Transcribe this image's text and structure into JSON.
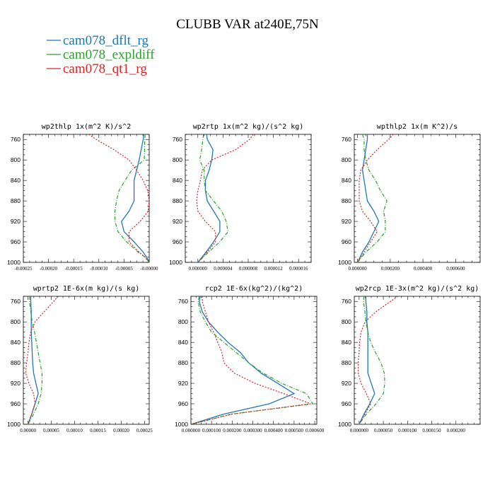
{
  "figure": {
    "title": "CLUBB VAR at240E,75N"
  },
  "legend": [
    {
      "name": "cam078_dflt_rg",
      "color": "#1f77b4"
    },
    {
      "name": "cam078_expldiff",
      "color": "#2ca02c"
    },
    {
      "name": "cam078_qt1_rg",
      "color": "#d62728"
    }
  ],
  "chart_data": [
    {
      "type": "line",
      "title": "wp2thlp  1x(m^2 K)/s^2",
      "xlim": [
        -0.00025,
        0.0
      ],
      "ylim": [
        1000,
        750
      ],
      "yticks": [
        760,
        800,
        840,
        880,
        920,
        960,
        1000
      ],
      "xtick_labels": [
        "-0.00025",
        "-0.00020",
        "-0.00015",
        "-0.00010",
        "-0.00005",
        "-0.00000"
      ],
      "xtick_values": [
        -0.00025,
        -0.0002,
        -0.00015,
        -0.0001,
        -5e-05,
        0.0
      ],
      "y": [
        750,
        760,
        780,
        800,
        820,
        840,
        860,
        880,
        900,
        920,
        940,
        960,
        980,
        990,
        1000
      ],
      "series": [
        {
          "name": "cam078_dflt_rg",
          "x": [
            -1.1e-05,
            -1.2e-05,
            -1.6e-05,
            -2e-05,
            -2.5e-05,
            -3e-05,
            -3e-05,
            -3e-05,
            -4e-05,
            -5.5e-05,
            -5e-05,
            -3e-05,
            -1.2e-05,
            -5e-06,
            0.0
          ]
        },
        {
          "name": "cam078_expldiff",
          "x": [
            -8e-06,
            -9e-06,
            -9e-06,
            -1e-05,
            -3.5e-05,
            -4.8e-05,
            -6e-05,
            -6.5e-05,
            -6.8e-05,
            -6.8e-05,
            -6.2e-05,
            -4.5e-05,
            -2.2e-05,
            -8e-06,
            0.0
          ]
        },
        {
          "name": "cam078_qt1_rg",
          "x": [
            -0.00012,
            -0.000105,
            -7e-05,
            -4e-05,
            -2.5e-05,
            -1.2e-05,
            -3e-06,
            0.0,
            -2e-06,
            -1.8e-05,
            -4e-05,
            -4e-05,
            -2e-05,
            -8e-06,
            0.0
          ]
        }
      ],
      "grid": false
    },
    {
      "type": "line",
      "title": "wp2rtp  1x(m^2 kg)/(s^2 kg)",
      "xlim": [
        -2e-06,
        1.8e-05
      ],
      "ylim": [
        1000,
        750
      ],
      "yticks": [
        760,
        800,
        840,
        880,
        920,
        960,
        1000
      ],
      "xtick_labels": [
        "0.000000",
        "0.000004",
        "0.000008",
        "0.000012",
        "0.000016"
      ],
      "xtick_values": [
        0.0,
        4e-06,
        8e-06,
        1.2e-05,
        1.6e-05
      ],
      "y": [
        750,
        760,
        780,
        800,
        820,
        840,
        860,
        880,
        900,
        920,
        940,
        960,
        980,
        1000
      ],
      "series": [
        {
          "name": "cam078_dflt_rg",
          "x": [
            1.4e-06,
            1.5e-06,
            2.4e-06,
            2.2e-06,
            1.8e-06,
            1.2e-06,
            1.2e-06,
            1.5e-06,
            2.5e-06,
            3.5e-06,
            3.5e-06,
            2.5e-06,
            1.3e-06,
            0.0
          ]
        },
        {
          "name": "cam078_expldiff",
          "x": [
            9e-07,
            8e-07,
            6e-07,
            3e-07,
            1e-06,
            1e-06,
            1.2e-06,
            2.5e-06,
            3.8e-06,
            4.5e-06,
            4.8e-06,
            3.5e-06,
            1.7e-06,
            0.0
          ]
        },
        {
          "name": "cam078_qt1_rg",
          "x": [
            8.8e-06,
            8.2e-06,
            6e-06,
            2.2e-06,
            7e-07,
            4e-07,
            0.0,
            -2e-07,
            0.0,
            1.2e-06,
            2.8e-06,
            2.8e-06,
            1.5e-06,
            0.0
          ]
        }
      ],
      "grid": false
    },
    {
      "type": "line",
      "title": "wpthlp2  1x(m K^2)/s",
      "xlim": [
        -2e-05,
        0.00075
      ],
      "ylim": [
        1000,
        750
      ],
      "yticks": [
        760,
        800,
        840,
        880,
        920,
        960,
        1000
      ],
      "xtick_labels": [
        "0.000000",
        "0.000200",
        "0.000400",
        "0.000600"
      ],
      "xtick_values": [
        0.0,
        0.0002,
        0.0004,
        0.0006
      ],
      "y": [
        750,
        760,
        780,
        800,
        820,
        840,
        860,
        880,
        900,
        920,
        940,
        960,
        980,
        1000
      ],
      "series": [
        {
          "name": "cam078_dflt_rg",
          "x": [
            6e-05,
            6e-05,
            5e-05,
            4e-05,
            3e-05,
            4e-05,
            5e-05,
            6e-05,
            0.0001,
            0.00013,
            0.0001,
            7e-05,
            3e-05,
            0.0
          ]
        },
        {
          "name": "cam078_expldiff",
          "x": [
            3e-05,
            4e-05,
            4e-05,
            5e-05,
            7e-05,
            0.00011,
            0.00014,
            0.00018,
            0.00016,
            0.00017,
            0.00017,
            0.00012,
            5e-05,
            0.0
          ]
        },
        {
          "name": "cam078_qt1_rg",
          "x": [
            0.00022,
            0.00019,
            0.00012,
            6e-05,
            2e-05,
            1e-05,
            1e-05,
            1e-05,
            3e-05,
            8e-05,
            0.00012,
            8e-05,
            4e-05,
            0.0
          ]
        }
      ],
      "grid": false
    },
    {
      "type": "line",
      "title": "wprtp2  1E-6x(m kg)/(s kg)",
      "xlim": [
        -1e-05,
        0.00026
      ],
      "ylim": [
        1000,
        750
      ],
      "yticks": [
        760,
        800,
        840,
        880,
        920,
        960,
        1000
      ],
      "xtick_labels": [
        "0.00000",
        "0.00005",
        "0.00010",
        "0.00015",
        "0.00020",
        "0.00025"
      ],
      "xtick_values": [
        0.0,
        5e-05,
        0.0001,
        0.00015,
        0.0002,
        0.00025
      ],
      "y": [
        750,
        760,
        780,
        800,
        820,
        840,
        860,
        880,
        900,
        920,
        940,
        960,
        980,
        1000
      ],
      "series": [
        {
          "name": "cam078_dflt_rg",
          "x": [
            6e-06,
            6e-06,
            7e-06,
            7e-06,
            7e-06,
            8e-06,
            9e-06,
            1e-05,
            1.2e-05,
            1.7e-05,
            2.2e-05,
            1.5e-05,
            8e-06,
            0.0
          ]
        },
        {
          "name": "cam078_expldiff",
          "x": [
            4e-06,
            3e-06,
            6e-06,
            9e-06,
            1.4e-05,
            1.8e-05,
            2.2e-05,
            2.6e-05,
            3e-05,
            3e-05,
            2.8e-05,
            2.2e-05,
            1.2e-05,
            0.0
          ]
        },
        {
          "name": "cam078_qt1_rg",
          "x": [
            6.5e-05,
            5.5e-05,
            3.5e-05,
            1.5e-05,
            6e-06,
            2e-06,
            0.0,
            -3e-06,
            -5e-06,
            2e-06,
            1.2e-05,
            1.5e-05,
            8e-06,
            0.0
          ]
        }
      ],
      "grid": false
    },
    {
      "type": "line",
      "title": "rcp2  1E-6x(kg^2)/(kg^2)",
      "xlim": [
        0.0,
        0.00061
      ],
      "ylim": [
        1000,
        750
      ],
      "yticks": [
        760,
        800,
        840,
        880,
        920,
        960,
        1000
      ],
      "xtick_labels": [
        "0.000000",
        "0.000100",
        "0.000200",
        "0.000300",
        "0.000400",
        "0.000500",
        "0.000600"
      ],
      "xtick_values": [
        0.0,
        0.0001,
        0.0002,
        0.0003,
        0.0004,
        0.0005,
        0.0006
      ],
      "y": [
        750,
        760,
        780,
        800,
        820,
        840,
        860,
        880,
        900,
        920,
        940,
        960,
        980,
        1000
      ],
      "series": [
        {
          "name": "cam078_dflt_rg",
          "x": [
            4.5e-05,
            4e-05,
            5.5e-05,
            8.5e-05,
            0.00013,
            0.00018,
            0.00024,
            0.00028,
            0.00034,
            0.00042,
            0.0005,
            0.00038,
            0.00016,
            0.0
          ]
        },
        {
          "name": "cam078_expldiff",
          "x": [
            4e-05,
            3.5e-05,
            4.5e-05,
            7e-05,
            0.0001,
            0.00016,
            0.00022,
            0.00028,
            0.00035,
            0.00044,
            0.00056,
            0.00059,
            0.0002,
            0.0
          ]
        },
        {
          "name": "cam078_qt1_rg",
          "x": [
            5.5e-05,
            5.5e-05,
            7e-05,
            8.5e-05,
            0.00011,
            0.00013,
            0.00015,
            0.00016,
            0.00021,
            0.00031,
            0.00045,
            0.00058,
            0.0002,
            0.0
          ]
        }
      ],
      "grid": false
    },
    {
      "type": "line",
      "title": "wp2rcp  1E-3x(m^2 kg)/(s^2 kg)",
      "xlim": [
        -1e-05,
        0.00025
      ],
      "ylim": [
        1000,
        750
      ],
      "yticks": [
        760,
        800,
        840,
        880,
        920,
        960,
        1000
      ],
      "xtick_labels": [
        "0.000000",
        "0.000050",
        "0.000100",
        "0.000150",
        "0.000200"
      ],
      "xtick_values": [
        0.0,
        5e-05,
        0.0001,
        0.00015,
        0.0002
      ],
      "y": [
        750,
        760,
        780,
        800,
        820,
        840,
        860,
        880,
        900,
        920,
        940,
        960,
        980,
        1000
      ],
      "series": [
        {
          "name": "cam078_dflt_rg",
          "x": [
            1.4e-05,
            1.4e-05,
            1.6e-05,
            1.6e-05,
            1.8e-05,
            1.8e-05,
            1.8e-05,
            1.8e-05,
            1.8e-05,
            2.5e-05,
            3.2e-05,
            2.2e-05,
            1e-05,
            0.0
          ]
        },
        {
          "name": "cam078_expldiff",
          "x": [
            1e-05,
            9e-06,
            1.2e-05,
            1.4e-05,
            1.8e-05,
            2.4e-05,
            3.4e-05,
            4.5e-05,
            5.2e-05,
            5.3e-05,
            5e-05,
            3.5e-05,
            1.5e-05,
            0.0
          ]
        },
        {
          "name": "cam078_qt1_rg",
          "x": [
            8e-05,
            6.5e-05,
            3.5e-05,
            1.2e-05,
            4e-06,
            1e-06,
            0.0,
            -2e-06,
            -2e-06,
            4e-06,
            1.5e-05,
            2.4e-05,
            1.2e-05,
            0.0
          ]
        }
      ],
      "grid": false
    }
  ]
}
